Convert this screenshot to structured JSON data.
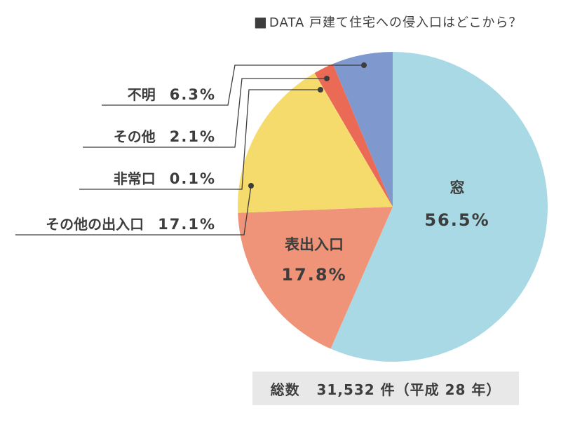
{
  "title_mark": "■",
  "title": "DATA 戸建て住宅への侵入口はどこから？",
  "total": {
    "label": "総数",
    "value": "31,532 件（平成 28 年）"
  },
  "chart_data": {
    "type": "pie",
    "title": "DATA 戸建て住宅への侵入口はどこから？",
    "start_angle": "12 o'clock",
    "direction": "clockwise",
    "slices": [
      {
        "label": "窓",
        "value": 56.5,
        "display": "56.5%",
        "color": "#a8d9e4",
        "label_position": "inside"
      },
      {
        "label": "表出入口",
        "value": 17.8,
        "display": "17.8%",
        "color": "#ef9478",
        "label_position": "inside"
      },
      {
        "label": "その他の出入口",
        "value": 17.1,
        "display": "17.1%",
        "color": "#f5db6c",
        "label_position": "outside"
      },
      {
        "label": "非常口",
        "value": 0.1,
        "display": "0.1%",
        "color": "#f5db6c",
        "label_position": "outside"
      },
      {
        "label": "その他",
        "value": 2.1,
        "display": "2.1%",
        "color": "#ea6a55",
        "label_position": "outside"
      },
      {
        "label": "不明",
        "value": 6.3,
        "display": "6.3%",
        "color": "#7f98cd",
        "label_position": "outside"
      }
    ],
    "extra_sliver_color": "#dbe8b8"
  }
}
